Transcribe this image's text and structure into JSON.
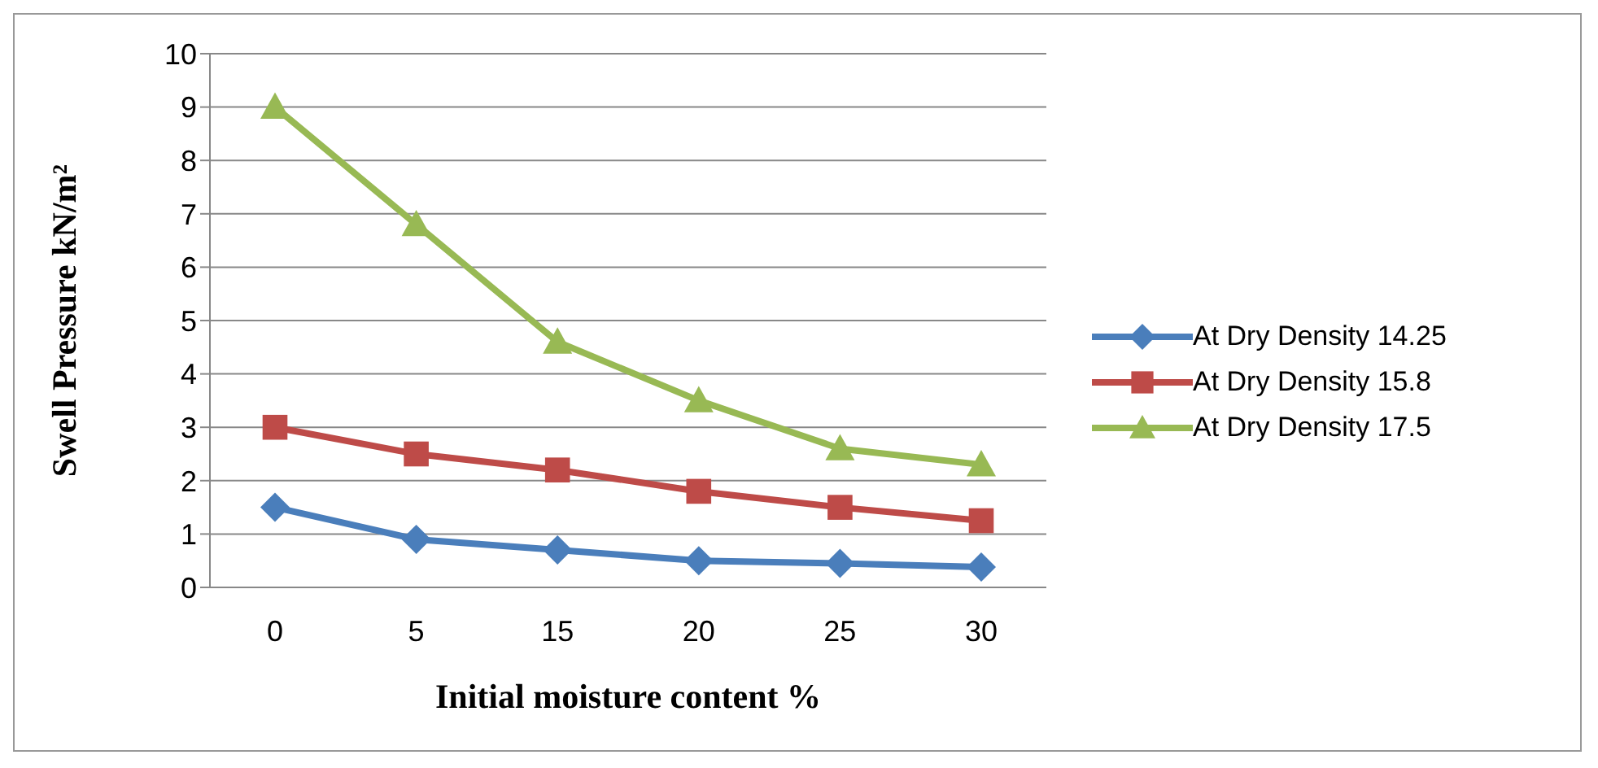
{
  "chart_data": {
    "type": "line",
    "xlabel": "Initial moisture content %",
    "ylabel": "Swell Pressure kN/m²",
    "categories": [
      "0",
      "5",
      "15",
      "20",
      "25",
      "30"
    ],
    "series": [
      {
        "name": "At Dry Density 14.25",
        "color": "#4a7ebb",
        "marker": "diamond",
        "values": [
          1.5,
          0.9,
          0.7,
          0.5,
          0.45,
          0.38
        ]
      },
      {
        "name": "At Dry Density 15.8",
        "color": "#be4b48",
        "marker": "square",
        "values": [
          3,
          2.5,
          2.2,
          1.8,
          1.5,
          1.25
        ]
      },
      {
        "name": "At Dry Density 17.5",
        "color": "#98b954",
        "marker": "triangle",
        "values": [
          9,
          6.8,
          4.6,
          3.5,
          2.6,
          2.3
        ]
      }
    ],
    "ylim": [
      0,
      10
    ],
    "yticks": [
      0,
      1,
      2,
      3,
      4,
      5,
      6,
      7,
      8,
      9,
      10
    ],
    "grid": "y",
    "legend": "right",
    "line_style": "solid"
  }
}
